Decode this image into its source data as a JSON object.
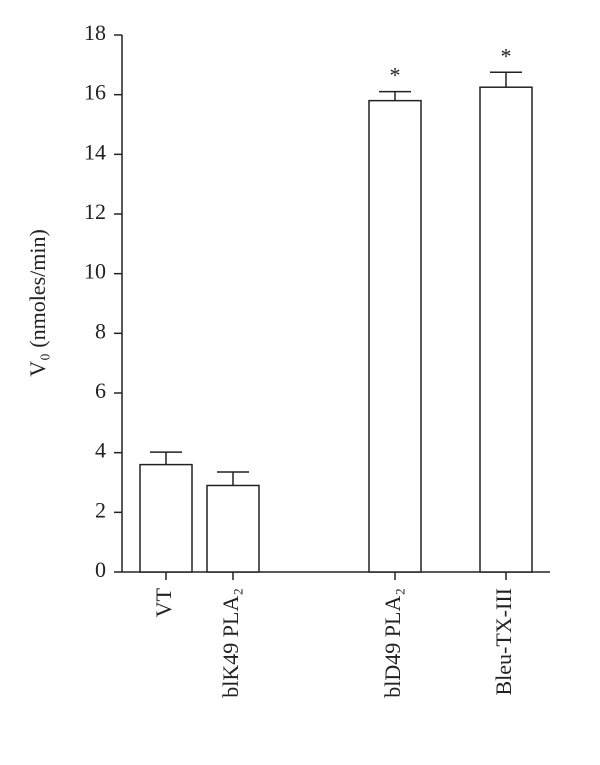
{
  "chart_data": {
    "type": "bar",
    "y_label": "V₀ (nmoles/min)",
    "categories": [
      "VT",
      "blK49 PLA₂",
      "blD49 PLA₂",
      "Bleu-TX-III"
    ],
    "values": [
      3.6,
      2.9,
      15.8,
      16.25
    ],
    "errors": [
      0.42,
      0.45,
      0.3,
      0.5
    ],
    "color": "#ffffff",
    "ylim": [
      0,
      18
    ],
    "yticks": [
      0,
      2,
      4,
      6,
      8,
      10,
      12,
      14,
      16,
      18
    ],
    "grid": false,
    "annotations": [
      {
        "text": "*",
        "category": "blD49 PLA₂"
      },
      {
        "text": "*",
        "category": "Bleu-TX-III"
      }
    ]
  }
}
